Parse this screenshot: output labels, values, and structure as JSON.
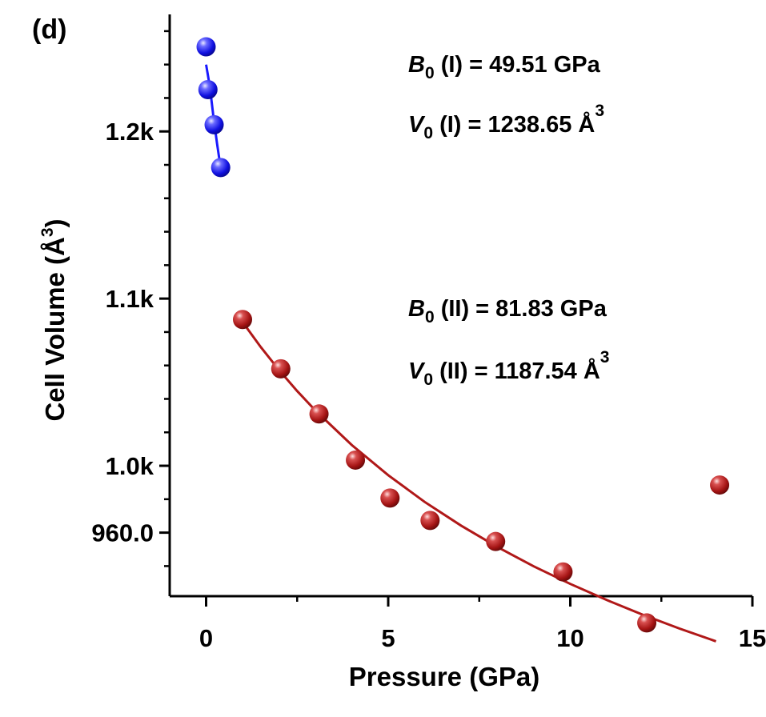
{
  "chart_data": {
    "type": "scatter",
    "panel_label": "(d)",
    "xlabel": "Pressure (GPa)",
    "ylabel": "Cell Volume (Å",
    "ylabel_sup": "3",
    "ylabel_close": ")",
    "xlim": [
      -1,
      15
    ],
    "ylim": [
      922,
      1270
    ],
    "x_ticks": [
      0,
      5,
      10,
      15
    ],
    "x_tick_labels": [
      "0",
      "5",
      "10",
      "15"
    ],
    "x_minor_ticks": [
      2.5,
      7.5,
      12.5
    ],
    "y_ticks": [
      960,
      1000,
      1100,
      1200
    ],
    "y_tick_labels": [
      "960.0",
      "1.0k",
      "1.1k",
      "1.2k"
    ],
    "y_minor_ticks": [
      940,
      980,
      1020,
      1040,
      1060,
      1080,
      1120,
      1140,
      1160,
      1180,
      1220,
      1240,
      1260
    ],
    "grid": false,
    "legend": "none",
    "series": [
      {
        "color": "#1a1aff",
        "x": [
          0.0,
          0.05,
          0.22,
          0.4
        ],
        "y": [
          1250.6,
          1225.0,
          1204.0,
          1178.4
        ],
        "fit": {
          "x": [
            0.0,
            0.1,
            0.2,
            0.3,
            0.4
          ],
          "y": [
            1240.0,
            1227.0,
            1209.0,
            1193.0,
            1178.0
          ]
        }
      },
      {
        "color": "#b01818",
        "x": [
          1.0,
          2.05,
          3.1,
          4.1,
          5.05,
          6.15,
          7.95,
          9.8,
          12.1,
          14.1
        ],
        "y": [
          1087.5,
          1058.0,
          1031.0,
          1003.4,
          980.7,
          967.3,
          954.7,
          936.5,
          906.0,
          988.5
        ],
        "fit": {
          "x": [
            1.0,
            1.5,
            2.0,
            2.5,
            3.0,
            4.0,
            5.0,
            6.0,
            7.0,
            8.0,
            9.0,
            10.0,
            11.0,
            12.0,
            13.0,
            14.0
          ],
          "y": [
            1086.0,
            1071.0,
            1057.3,
            1044.7,
            1033.1,
            1012.4,
            994.4,
            978.4,
            964.2,
            951.4,
            939.8,
            929.3,
            919.7,
            910.8,
            902.6,
            895.0
          ]
        }
      }
    ],
    "annotations": [
      {
        "sym": "B",
        "sub": "0",
        "text": " (I) = 49.51 GPa",
        "sup": ""
      },
      {
        "sym": "V",
        "sub": "0",
        "text": " (I) = 1238.65 Å",
        "sup": "3"
      },
      {
        "sym": "B",
        "sub": "0",
        "text": " (II) =  81.83 GPa",
        "sup": ""
      },
      {
        "sym": "V",
        "sub": "0",
        "text": " (II) = 1187.54 Å",
        "sup": "3"
      }
    ]
  }
}
